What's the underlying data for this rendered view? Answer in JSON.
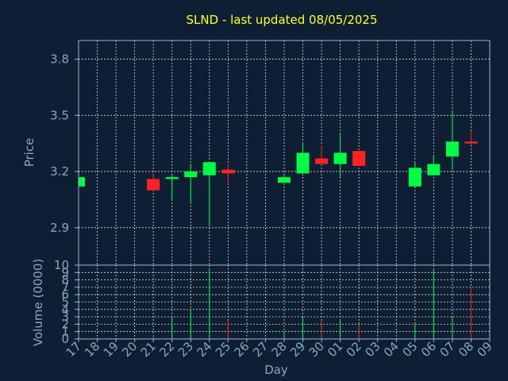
{
  "chart_data": {
    "type": "candlestick",
    "title": "SLND - last updated 08/05/2025",
    "xlabel": "Day",
    "ylabel_price": "Price",
    "ylabel_volume": "Volume (0000)",
    "price_ylim": [
      2.7,
      3.9
    ],
    "price_ticks": [
      "2.9",
      "3.2",
      "3.5",
      "3.8"
    ],
    "volume_ylim": [
      0,
      10
    ],
    "volume_ticks": [
      "0",
      "1",
      "2",
      "3",
      "4",
      "5",
      "6",
      "7",
      "8",
      "9",
      "10"
    ],
    "grid": true,
    "x_labels": [
      "17",
      "18",
      "19",
      "20",
      "21",
      "22",
      "23",
      "24",
      "25",
      "26",
      "27",
      "28",
      "29",
      "30",
      "01",
      "02",
      "03",
      "04",
      "05",
      "06",
      "07",
      "08",
      "09"
    ],
    "candles": [
      {
        "day": "17",
        "open": 3.12,
        "close": 3.17,
        "high": 3.17,
        "low": 3.12,
        "volume": 0
      },
      {
        "day": "21",
        "open": 3.16,
        "close": 3.1,
        "high": 3.19,
        "low": 3.1,
        "volume": 0.5
      },
      {
        "day": "22",
        "open": 3.16,
        "close": 3.17,
        "high": 3.18,
        "low": 3.05,
        "volume": 3
      },
      {
        "day": "23",
        "open": 3.17,
        "close": 3.2,
        "high": 3.24,
        "low": 3.03,
        "volume": 4
      },
      {
        "day": "24",
        "open": 3.18,
        "close": 3.25,
        "high": 3.25,
        "low": 2.91,
        "volume": 9.5
      },
      {
        "day": "25",
        "open": 3.21,
        "close": 3.19,
        "high": 3.24,
        "low": 3.13,
        "volume": 2.5
      },
      {
        "day": "28",
        "open": 3.14,
        "close": 3.17,
        "high": 3.19,
        "low": 3.14,
        "volume": 1
      },
      {
        "day": "29",
        "open": 3.19,
        "close": 3.3,
        "high": 3.35,
        "low": 3.19,
        "volume": 3
      },
      {
        "day": "30",
        "open": 3.27,
        "close": 3.24,
        "high": 3.34,
        "low": 3.24,
        "volume": 2.5
      },
      {
        "day": "01",
        "open": 3.24,
        "close": 3.3,
        "high": 3.4,
        "low": 3.17,
        "volume": 2.5
      },
      {
        "day": "02",
        "open": 3.31,
        "close": 3.23,
        "high": 3.31,
        "low": 3.23,
        "volume": 2
      },
      {
        "day": "05",
        "open": 3.12,
        "close": 3.22,
        "high": 3.25,
        "low": 3.11,
        "volume": 2
      },
      {
        "day": "06",
        "open": 3.18,
        "close": 3.24,
        "high": 3.28,
        "low": 3.18,
        "volume": 9.5
      },
      {
        "day": "07",
        "open": 3.28,
        "close": 3.36,
        "high": 3.53,
        "low": 3.21,
        "volume": 3
      },
      {
        "day": "08",
        "open": 3.36,
        "close": 3.35,
        "high": 3.42,
        "low": 3.34,
        "volume": 7
      }
    ],
    "colors": {
      "background": "#0f1f33",
      "plot_bg": "#0f1f33",
      "axis": "#9cb3d6",
      "grid": "#d8d8d8",
      "title": "#ffff33",
      "label": "#8aa4c8",
      "up": "#00ff44",
      "down": "#ff2222"
    }
  }
}
